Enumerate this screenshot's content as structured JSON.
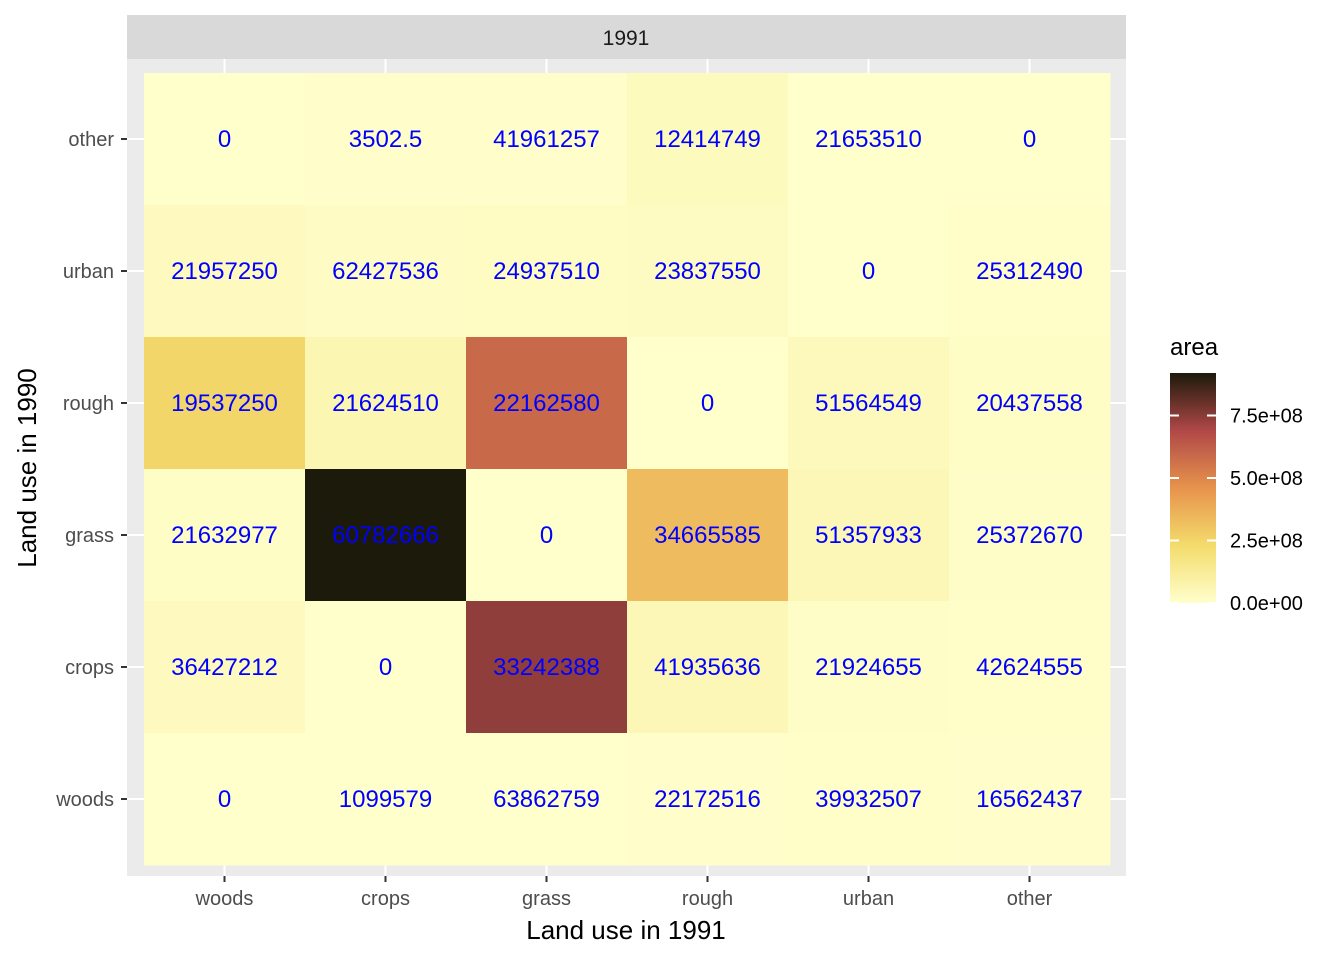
{
  "chart_data": {
    "type": "heatmap",
    "facet_label": "1991",
    "xlabel": "Land use in 1991",
    "ylabel": "Land use in 1990",
    "x_categories": [
      "woods",
      "crops",
      "grass",
      "rough",
      "urban",
      "other"
    ],
    "y_categories": [
      "woods",
      "crops",
      "grass",
      "rough",
      "urban",
      "other"
    ],
    "fill_legend": {
      "title": "area",
      "min": 0,
      "max": 920000000,
      "breaks": [
        0,
        250000000,
        500000000,
        750000000
      ],
      "break_labels": [
        "0.0e+00",
        "2.5e+08",
        "5.0e+08",
        "7.5e+08"
      ],
      "colors": [
        "#ffffcc",
        "#f4dc6c",
        "#e7934c",
        "#b04848",
        "#1c1a0a"
      ]
    },
    "cells": [
      {
        "y": "other",
        "values": [
          {
            "x": "woods",
            "area": 0,
            "label": "0"
          },
          {
            "x": "crops",
            "area": 3500000,
            "label": "3502.5"
          },
          {
            "x": "grass",
            "area": 4000000,
            "label": "41961257"
          },
          {
            "x": "rough",
            "area": 35000000,
            "label": "12414749"
          },
          {
            "x": "urban",
            "area": 3000000,
            "label": "21653510"
          },
          {
            "x": "other",
            "area": 0,
            "label": "0"
          }
        ]
      },
      {
        "y": "urban",
        "values": [
          {
            "x": "woods",
            "area": 30000000,
            "label": "21957250"
          },
          {
            "x": "crops",
            "area": 18000000,
            "label": "62427536"
          },
          {
            "x": "grass",
            "area": 22000000,
            "label": "24937510"
          },
          {
            "x": "rough",
            "area": 25000000,
            "label": "23837550"
          },
          {
            "x": "urban",
            "area": 0,
            "label": "0"
          },
          {
            "x": "other",
            "area": 8000000,
            "label": "25312490"
          }
        ]
      },
      {
        "y": "rough",
        "values": [
          {
            "x": "woods",
            "area": 250000000,
            "label": "19537250"
          },
          {
            "x": "crops",
            "area": 60000000,
            "label": "21624510"
          },
          {
            "x": "grass",
            "area": 590000000,
            "label": "22162580"
          },
          {
            "x": "rough",
            "area": 0,
            "label": "0"
          },
          {
            "x": "urban",
            "area": 38000000,
            "label": "51564549"
          },
          {
            "x": "other",
            "area": 15000000,
            "label": "20437558"
          }
        ]
      },
      {
        "y": "grass",
        "values": [
          {
            "x": "woods",
            "area": 15000000,
            "label": "21632977"
          },
          {
            "x": "crops",
            "area": 920000000,
            "label": "60782666"
          },
          {
            "x": "grass",
            "area": 0,
            "label": "0"
          },
          {
            "x": "rough",
            "area": 330000000,
            "label": "34665585"
          },
          {
            "x": "urban",
            "area": 50000000,
            "label": "51357933"
          },
          {
            "x": "other",
            "area": 12000000,
            "label": "25372670"
          }
        ]
      },
      {
        "y": "crops",
        "values": [
          {
            "x": "woods",
            "area": 30000000,
            "label": "36427212"
          },
          {
            "x": "crops",
            "area": 0,
            "label": "0"
          },
          {
            "x": "grass",
            "area": 740000000,
            "label": "33242388"
          },
          {
            "x": "rough",
            "area": 50000000,
            "label": "41935636"
          },
          {
            "x": "urban",
            "area": 12000000,
            "label": "21924655"
          },
          {
            "x": "other",
            "area": 8000000,
            "label": "42624555"
          }
        ]
      },
      {
        "y": "woods",
        "values": [
          {
            "x": "woods",
            "area": 0,
            "label": "0"
          },
          {
            "x": "crops",
            "area": 2000000,
            "label": "1099579"
          },
          {
            "x": "grass",
            "area": 3000000,
            "label": "63862759"
          },
          {
            "x": "rough",
            "area": 4000000,
            "label": "22172516"
          },
          {
            "x": "urban",
            "area": 6000000,
            "label": "39932507"
          },
          {
            "x": "other",
            "area": 5000000,
            "label": "16562437"
          }
        ]
      }
    ],
    "label_color": "#0000ff"
  }
}
